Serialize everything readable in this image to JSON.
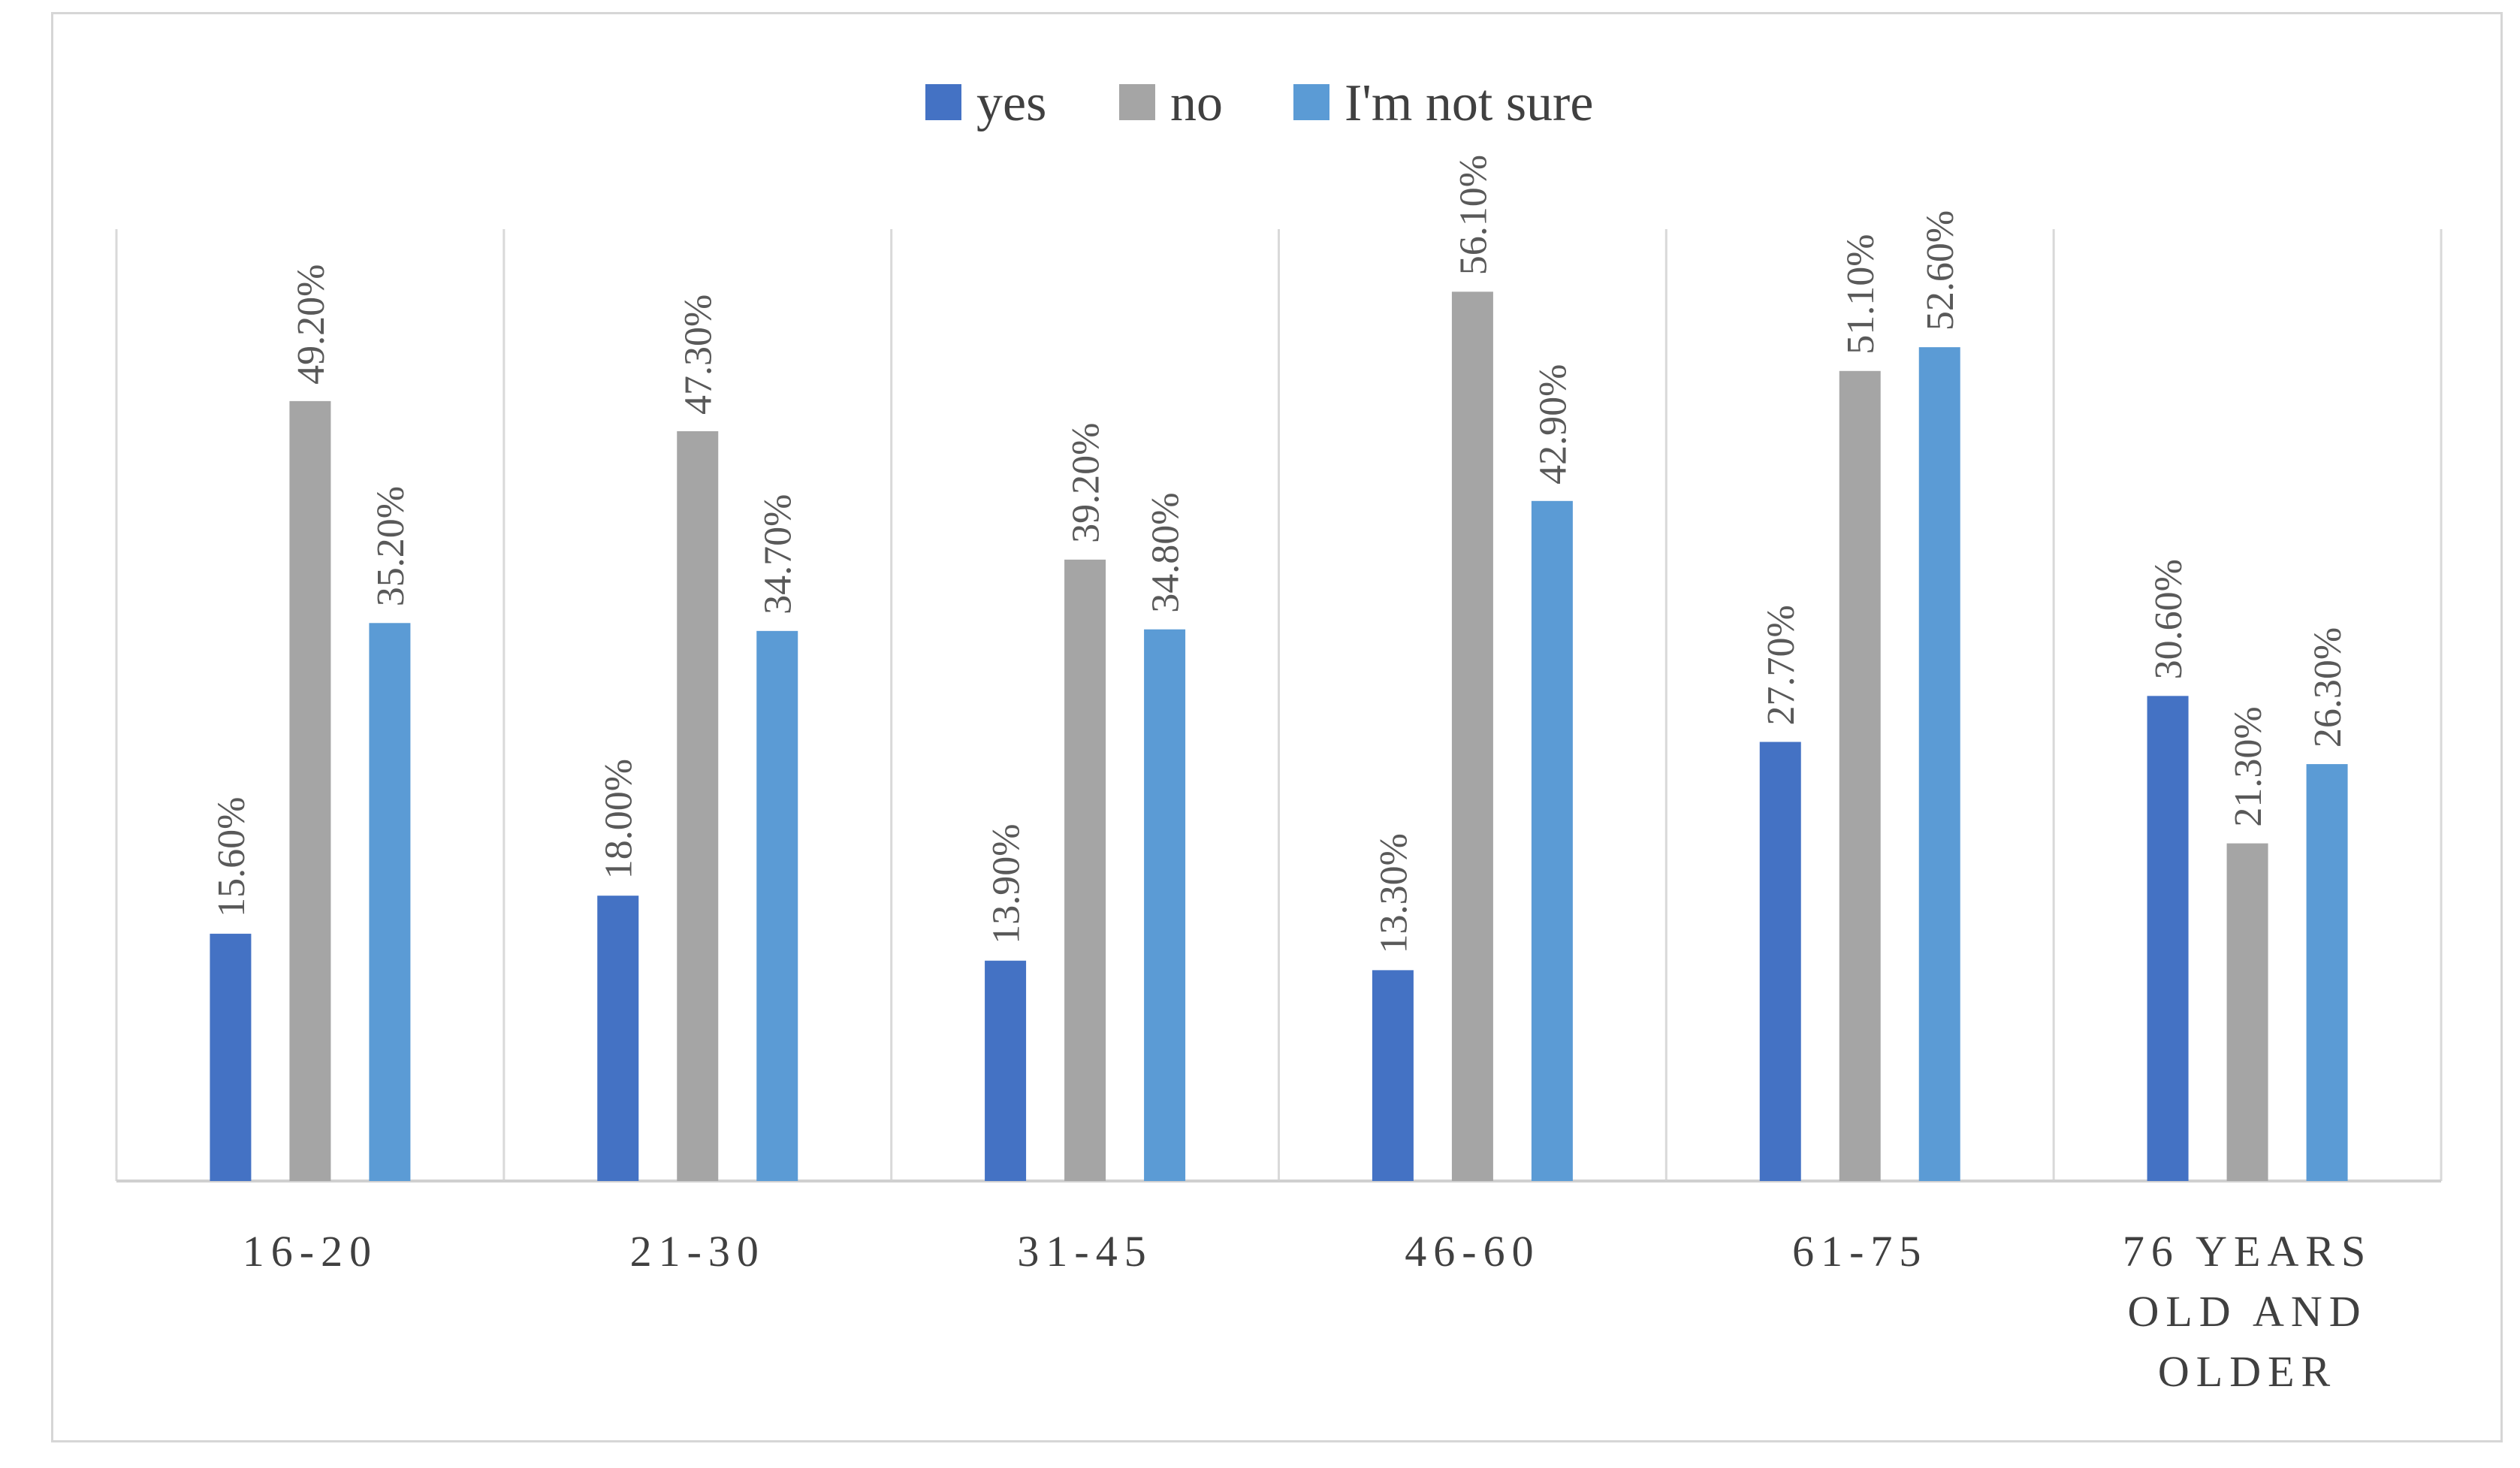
{
  "chart_data": {
    "type": "bar",
    "title": "",
    "xlabel": "",
    "ylabel": "",
    "ylim": [
      0,
      60
    ],
    "grid": "vertical category separators",
    "legend_position": "top-center",
    "categories": [
      "16-20",
      "21-30",
      "31-45",
      "46-60",
      "61-75",
      "76 YEARS OLD AND OLDER"
    ],
    "category_lines": [
      [
        "16-20"
      ],
      [
        "21-30"
      ],
      [
        "31-45"
      ],
      [
        "46-60"
      ],
      [
        "61-75"
      ],
      [
        "76 YEARS",
        "OLD AND",
        "OLDER"
      ]
    ],
    "series": [
      {
        "name": "yes",
        "color": "#4472C4",
        "values": [
          15.6,
          18.0,
          13.9,
          13.3,
          27.7,
          30.6
        ],
        "labels": [
          "15.60%",
          "18.00%",
          "13.90%",
          "13.30%",
          "27.70%",
          "30.60%"
        ]
      },
      {
        "name": "no",
        "color": "#A5A5A5",
        "values": [
          49.2,
          47.3,
          39.2,
          56.1,
          51.1,
          21.3
        ],
        "labels": [
          "49.20%",
          "47.30%",
          "39.20%",
          "56.10%",
          "51.10%",
          "21.30%"
        ]
      },
      {
        "name": "I'm not sure",
        "color": "#5B9BD5",
        "values": [
          35.2,
          34.7,
          34.8,
          42.9,
          52.6,
          26.3
        ],
        "labels": [
          "35.20%",
          "34.70%",
          "34.80%",
          "42.90%",
          "52.60%",
          "26.30%"
        ]
      }
    ]
  }
}
